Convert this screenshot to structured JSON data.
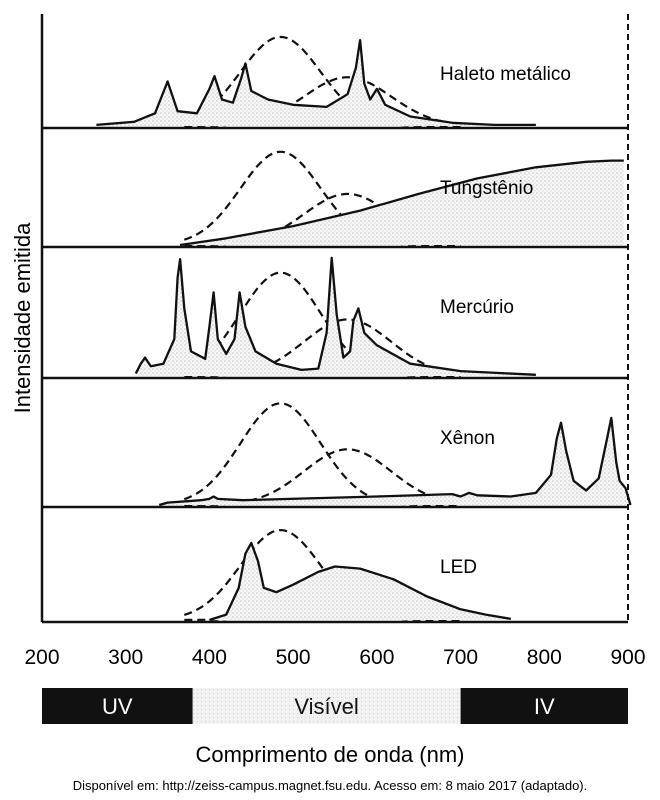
{
  "chart_data": {
    "type": "line",
    "ylabel": "Intensidade emitida",
    "xlabel": "Comprimento de onda (nm)",
    "xlim": [
      200,
      900
    ],
    "x_ticks": [
      "200",
      "300",
      "400",
      "500",
      "600",
      "700",
      "800",
      "900"
    ],
    "reference_curves_style": "dashed",
    "panels": [
      {
        "label": "Haleto metálico",
        "peaks": [
          {
            "x": 350,
            "y": 0.42
          },
          {
            "x": 406,
            "y": 0.47
          },
          {
            "x": 443,
            "y": 0.59
          },
          {
            "x": 580,
            "y": 0.81
          },
          {
            "x": 600,
            "y": 0.35
          }
        ],
        "emission": [
          [
            265,
            0.01
          ],
          [
            310,
            0.04
          ],
          [
            335,
            0.12
          ],
          [
            350,
            0.42
          ],
          [
            362,
            0.14
          ],
          [
            385,
            0.12
          ],
          [
            400,
            0.35
          ],
          [
            406,
            0.47
          ],
          [
            415,
            0.25
          ],
          [
            428,
            0.22
          ],
          [
            438,
            0.45
          ],
          [
            443,
            0.59
          ],
          [
            450,
            0.33
          ],
          [
            470,
            0.25
          ],
          [
            500,
            0.2
          ],
          [
            540,
            0.18
          ],
          [
            565,
            0.3
          ],
          [
            575,
            0.55
          ],
          [
            580,
            0.81
          ],
          [
            585,
            0.4
          ],
          [
            592,
            0.25
          ],
          [
            600,
            0.35
          ],
          [
            610,
            0.2
          ],
          [
            640,
            0.09
          ],
          [
            690,
            0.03
          ],
          [
            740,
            0.01
          ],
          [
            790,
            0.01
          ]
        ]
      },
      {
        "label": "Tungstênio",
        "emission": [
          [
            365,
            0.0
          ],
          [
            420,
            0.06
          ],
          [
            500,
            0.17
          ],
          [
            580,
            0.31
          ],
          [
            650,
            0.46
          ],
          [
            720,
            0.6
          ],
          [
            790,
            0.7
          ],
          [
            850,
            0.75
          ],
          [
            880,
            0.76
          ],
          [
            895,
            0.76
          ]
        ]
      },
      {
        "label": "Mercúrio",
        "peaks": [
          {
            "x": 365,
            "y": 0.95
          },
          {
            "x": 405,
            "y": 0.68
          },
          {
            "x": 436,
            "y": 0.68
          },
          {
            "x": 546,
            "y": 0.96
          },
          {
            "x": 578,
            "y": 0.55
          }
        ],
        "emission": [
          [
            312,
            0.02
          ],
          [
            318,
            0.1
          ],
          [
            323,
            0.15
          ],
          [
            330,
            0.08
          ],
          [
            345,
            0.1
          ],
          [
            358,
            0.3
          ],
          [
            362,
            0.8
          ],
          [
            365,
            0.95
          ],
          [
            370,
            0.55
          ],
          [
            378,
            0.2
          ],
          [
            395,
            0.14
          ],
          [
            400,
            0.4
          ],
          [
            405,
            0.68
          ],
          [
            410,
            0.3
          ],
          [
            420,
            0.18
          ],
          [
            430,
            0.3
          ],
          [
            436,
            0.68
          ],
          [
            443,
            0.4
          ],
          [
            455,
            0.2
          ],
          [
            480,
            0.1
          ],
          [
            510,
            0.05
          ],
          [
            530,
            0.06
          ],
          [
            540,
            0.35
          ],
          [
            546,
            0.96
          ],
          [
            552,
            0.5
          ],
          [
            560,
            0.15
          ],
          [
            568,
            0.2
          ],
          [
            572,
            0.45
          ],
          [
            578,
            0.55
          ],
          [
            585,
            0.35
          ],
          [
            600,
            0.25
          ],
          [
            640,
            0.1
          ],
          [
            700,
            0.04
          ],
          [
            790,
            0.01
          ]
        ]
      },
      {
        "label": "Xênon",
        "peaks": [
          {
            "x": 820,
            "y": 0.68
          },
          {
            "x": 880,
            "y": 0.72
          }
        ],
        "emission": [
          [
            340,
            0.0
          ],
          [
            350,
            0.02
          ],
          [
            390,
            0.04
          ],
          [
            400,
            0.05
          ],
          [
            405,
            0.07
          ],
          [
            410,
            0.05
          ],
          [
            440,
            0.04
          ],
          [
            600,
            0.07
          ],
          [
            690,
            0.09
          ],
          [
            700,
            0.07
          ],
          [
            710,
            0.1
          ],
          [
            720,
            0.08
          ],
          [
            760,
            0.07
          ],
          [
            790,
            0.1
          ],
          [
            808,
            0.25
          ],
          [
            815,
            0.55
          ],
          [
            820,
            0.68
          ],
          [
            826,
            0.45
          ],
          [
            835,
            0.2
          ],
          [
            850,
            0.12
          ],
          [
            865,
            0.22
          ],
          [
            875,
            0.55
          ],
          [
            880,
            0.72
          ],
          [
            886,
            0.35
          ],
          [
            890,
            0.2
          ],
          [
            897,
            0.14
          ],
          [
            903,
            0.0
          ]
        ]
      },
      {
        "label": "LED",
        "peaks": [
          {
            "x": 450,
            "y": 0.72
          },
          {
            "x": 550,
            "y": 0.5
          }
        ],
        "emission": [
          [
            400,
            0.0
          ],
          [
            420,
            0.05
          ],
          [
            435,
            0.3
          ],
          [
            443,
            0.62
          ],
          [
            450,
            0.72
          ],
          [
            458,
            0.55
          ],
          [
            465,
            0.3
          ],
          [
            480,
            0.26
          ],
          [
            500,
            0.33
          ],
          [
            530,
            0.45
          ],
          [
            550,
            0.5
          ],
          [
            580,
            0.48
          ],
          [
            620,
            0.38
          ],
          [
            660,
            0.22
          ],
          [
            700,
            0.1
          ],
          [
            730,
            0.05
          ],
          [
            760,
            0.01
          ]
        ]
      }
    ],
    "bands": [
      {
        "label": "UV",
        "x_range": [
          200,
          380
        ],
        "color": "#111111"
      },
      {
        "label": "Visível",
        "x_range": [
          380,
          700
        ],
        "color": "#ececec"
      },
      {
        "label": "IV",
        "x_range": [
          700,
          900
        ],
        "color": "#111111"
      }
    ]
  },
  "source": "Disponível em: http://zeiss-campus.magnet.fsu.edu. Acesso em: 8 maio 2017 (adaptado)."
}
